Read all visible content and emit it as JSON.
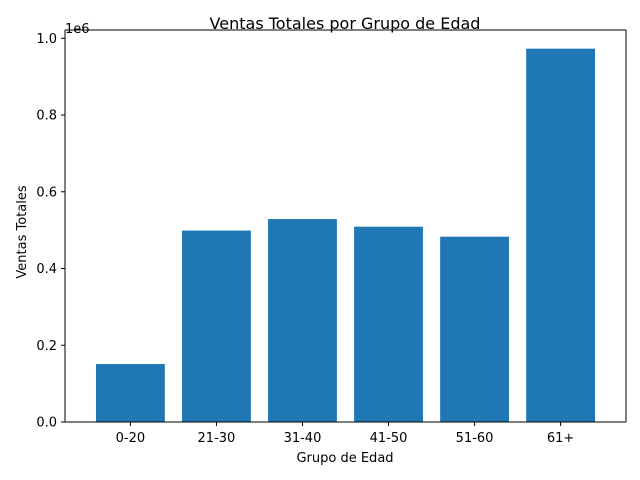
{
  "chart_data": {
    "type": "bar",
    "title": "Ventas Totales por Grupo de Edad",
    "xlabel": "Grupo de Edad",
    "ylabel": "Ventas Totales",
    "y_offset_label": "1e6",
    "categories": [
      "0-20",
      "21-30",
      "31-40",
      "41-50",
      "51-60",
      "61+"
    ],
    "values": [
      151000,
      499000,
      529000,
      509000,
      483000,
      973000
    ],
    "ylim": [
      0,
      1021650
    ],
    "yticks": [
      0,
      200000,
      400000,
      600000,
      800000,
      1000000
    ],
    "ytick_labels": [
      "0.0",
      "0.2",
      "0.4",
      "0.6",
      "0.8",
      "1.0"
    ],
    "bar_color": "#1f77b4",
    "grid": false,
    "legend": "none"
  }
}
